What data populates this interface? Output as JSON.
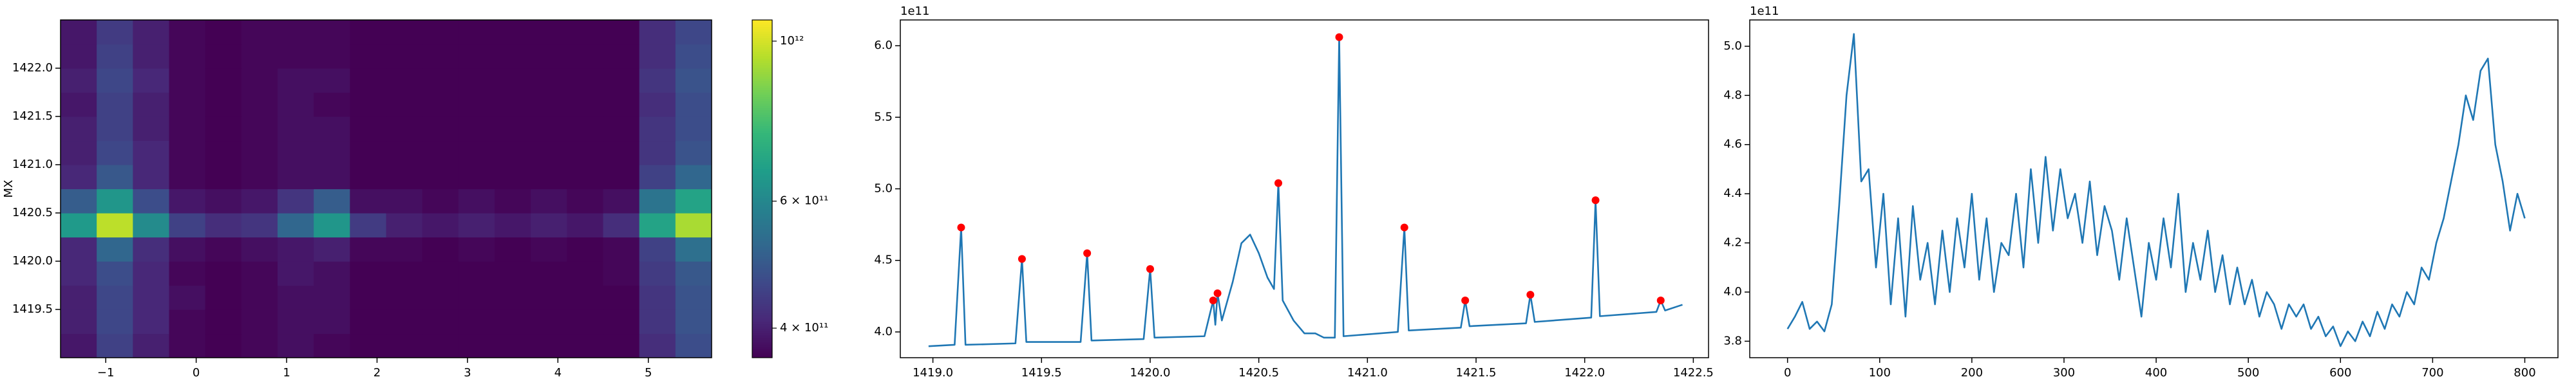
{
  "chart_data": [
    {
      "type": "heatmap",
      "ylabel": "MX",
      "x": [
        -1.3,
        -0.9,
        -0.5,
        -0.1,
        0.3,
        0.7,
        1.1,
        1.5,
        1.9,
        2.3,
        2.7,
        3.1,
        3.5,
        3.9,
        4.3,
        4.7,
        5.1,
        5.5
      ],
      "y": [
        1419.125,
        1419.375,
        1419.625,
        1419.875,
        1420.125,
        1420.375,
        1420.625,
        1420.875,
        1421.125,
        1421.375,
        1421.625,
        1421.875,
        1422.125,
        1422.375
      ],
      "values": [
        [
          390000000000.0,
          450000000000.0,
          400000000000.0,
          370000000000.0,
          360000000000.0,
          370000000000.0,
          380000000000.0,
          370000000000.0,
          360000000000.0,
          360000000000.0,
          350000000000.0,
          360000000000.0,
          350000000000.0,
          360000000000.0,
          350000000000.0,
          360000000000.0,
          420000000000.0,
          470000000000.0
        ],
        [
          400000000000.0,
          460000000000.0,
          410000000000.0,
          370000000000.0,
          360000000000.0,
          370000000000.0,
          380000000000.0,
          380000000000.0,
          360000000000.0,
          360000000000.0,
          350000000000.0,
          360000000000.0,
          350000000000.0,
          360000000000.0,
          350000000000.0,
          360000000000.0,
          430000000000.0,
          480000000000.0
        ],
        [
          400000000000.0,
          460000000000.0,
          410000000000.0,
          380000000000.0,
          360000000000.0,
          370000000000.0,
          380000000000.0,
          380000000000.0,
          360000000000.0,
          350000000000.0,
          350000000000.0,
          360000000000.0,
          350000000000.0,
          360000000000.0,
          350000000000.0,
          360000000000.0,
          430000000000.0,
          480000000000.0
        ],
        [
          410000000000.0,
          470000000000.0,
          410000000000.0,
          370000000000.0,
          360000000000.0,
          370000000000.0,
          390000000000.0,
          380000000000.0,
          360000000000.0,
          360000000000.0,
          350000000000.0,
          360000000000.0,
          350000000000.0,
          360000000000.0,
          350000000000.0,
          370000000000.0,
          440000000000.0,
          490000000000.0
        ],
        [
          410000000000.0,
          520000000000.0,
          420000000000.0,
          380000000000.0,
          370000000000.0,
          380000000000.0,
          390000000000.0,
          400000000000.0,
          370000000000.0,
          370000000000.0,
          360000000000.0,
          370000000000.0,
          360000000000.0,
          370000000000.0,
          360000000000.0,
          370000000000.0,
          450000000000.0,
          540000000000.0
        ],
        [
          650000000000.0,
          960000000000.0,
          610000000000.0,
          450000000000.0,
          420000000000.0,
          430000000000.0,
          520000000000.0,
          640000000000.0,
          440000000000.0,
          400000000000.0,
          390000000000.0,
          400000000000.0,
          390000000000.0,
          400000000000.0,
          390000000000.0,
          420000000000.0,
          680000000000.0,
          930000000000.0
        ],
        [
          500000000000.0,
          640000000000.0,
          470000000000.0,
          390000000000.0,
          380000000000.0,
          390000000000.0,
          430000000000.0,
          500000000000.0,
          380000000000.0,
          380000000000.0,
          370000000000.0,
          380000000000.0,
          370000000000.0,
          380000000000.0,
          370000000000.0,
          380000000000.0,
          550000000000.0,
          680000000000.0
        ],
        [
          410000000000.0,
          490000000000.0,
          410000000000.0,
          370000000000.0,
          360000000000.0,
          370000000000.0,
          380000000000.0,
          380000000000.0,
          360000000000.0,
          360000000000.0,
          350000000000.0,
          360000000000.0,
          350000000000.0,
          360000000000.0,
          350000000000.0,
          360000000000.0,
          450000000000.0,
          520000000000.0
        ],
        [
          400000000000.0,
          460000000000.0,
          410000000000.0,
          370000000000.0,
          360000000000.0,
          370000000000.0,
          380000000000.0,
          380000000000.0,
          360000000000.0,
          360000000000.0,
          350000000000.0,
          360000000000.0,
          350000000000.0,
          360000000000.0,
          350000000000.0,
          360000000000.0,
          430000000000.0,
          480000000000.0
        ],
        [
          400000000000.0,
          450000000000.0,
          400000000000.0,
          370000000000.0,
          360000000000.0,
          370000000000.0,
          380000000000.0,
          380000000000.0,
          360000000000.0,
          360000000000.0,
          350000000000.0,
          360000000000.0,
          350000000000.0,
          360000000000.0,
          350000000000.0,
          360000000000.0,
          430000000000.0,
          470000000000.0
        ],
        [
          390000000000.0,
          450000000000.0,
          400000000000.0,
          370000000000.0,
          360000000000.0,
          370000000000.0,
          380000000000.0,
          370000000000.0,
          360000000000.0,
          360000000000.0,
          350000000000.0,
          360000000000.0,
          350000000000.0,
          360000000000.0,
          350000000000.0,
          360000000000.0,
          420000000000.0,
          470000000000.0
        ],
        [
          400000000000.0,
          460000000000.0,
          410000000000.0,
          370000000000.0,
          360000000000.0,
          370000000000.0,
          380000000000.0,
          380000000000.0,
          360000000000.0,
          360000000000.0,
          350000000000.0,
          360000000000.0,
          350000000000.0,
          360000000000.0,
          350000000000.0,
          360000000000.0,
          430000000000.0,
          480000000000.0
        ],
        [
          390000000000.0,
          450000000000.0,
          400000000000.0,
          370000000000.0,
          360000000000.0,
          370000000000.0,
          370000000000.0,
          370000000000.0,
          360000000000.0,
          360000000000.0,
          350000000000.0,
          360000000000.0,
          350000000000.0,
          360000000000.0,
          350000000000.0,
          360000000000.0,
          420000000000.0,
          470000000000.0
        ],
        [
          390000000000.0,
          440000000000.0,
          400000000000.0,
          370000000000.0,
          360000000000.0,
          370000000000.0,
          370000000000.0,
          370000000000.0,
          360000000000.0,
          350000000000.0,
          350000000000.0,
          350000000000.0,
          350000000000.0,
          360000000000.0,
          350000000000.0,
          360000000000.0,
          420000000000.0,
          460000000000.0
        ]
      ],
      "xlim": [
        -1.5,
        5.7
      ],
      "ylim": [
        1419.0,
        1422.5
      ],
      "xticks": [
        {
          "value": -1,
          "label": "−1"
        },
        0,
        1,
        2,
        3,
        4,
        5
      ],
      "yticks": [
        1419.5,
        {
          "value": 1420,
          "label": "1420.0"
        },
        1420.5,
        {
          "value": 1421,
          "label": "1421.0"
        },
        1421.5,
        {
          "value": 1422,
          "label": "1422.0"
        }
      ],
      "colormap": [
        "#440154",
        "#482878",
        "#3e4989",
        "#31688e",
        "#26828e",
        "#1f9e89",
        "#35b779",
        "#6ece58",
        "#b5de2b",
        "#fde725"
      ],
      "colorbar": {
        "scale": "log",
        "lim": [
          364000000000.0,
          1070000000000.0
        ],
        "ticks": [
          {
            "value": 400000000000.0,
            "label": "4 × 10¹¹"
          },
          {
            "value": 600000000000.0,
            "label": "6 × 10¹¹"
          },
          {
            "value": 1000000000000.0,
            "label": "10¹²"
          }
        ]
      }
    },
    {
      "type": "line",
      "y_offset_label": "1e11",
      "xlim": [
        1418.85,
        1422.57
      ],
      "ylim": [
        3.82,
        6.18
      ],
      "xticks": [
        {
          "value": 1419,
          "label": "1419.0"
        },
        1419.5,
        {
          "value": 1420,
          "label": "1420.0"
        },
        1420.5,
        {
          "value": 1421,
          "label": "1421.0"
        },
        1421.5,
        {
          "value": 1422,
          "label": "1422.0"
        },
        1422.5
      ],
      "yticks": [
        {
          "value": 4,
          "label": "4.0"
        },
        4.5,
        {
          "value": 5,
          "label": "5.0"
        },
        5.5,
        {
          "value": 6,
          "label": "6.0"
        }
      ],
      "series": [
        {
          "type": "line",
          "color": "#1f77b4",
          "x": [
            1418.98,
            1419.1,
            1419.13,
            1419.15,
            1419.38,
            1419.41,
            1419.43,
            1419.68,
            1419.71,
            1419.73,
            1419.97,
            1420.0,
            1420.02,
            1420.25,
            1420.29,
            1420.3,
            1420.31,
            1420.33,
            1420.38,
            1420.42,
            1420.46,
            1420.5,
            1420.54,
            1420.57,
            1420.59,
            1420.61,
            1420.66,
            1420.71,
            1420.76,
            1420.8,
            1420.85,
            1420.87,
            1420.89,
            1421.14,
            1421.17,
            1421.19,
            1421.43,
            1421.45,
            1421.47,
            1421.73,
            1421.75,
            1421.77,
            1422.03,
            1422.05,
            1422.07,
            1422.33,
            1422.35,
            1422.37,
            1422.45
          ],
          "values": [
            3.9,
            3.91,
            4.73,
            3.91,
            3.92,
            4.51,
            3.93,
            3.93,
            4.55,
            3.94,
            3.95,
            4.44,
            3.96,
            3.97,
            4.22,
            4.05,
            4.27,
            4.08,
            4.35,
            4.62,
            4.68,
            4.55,
            4.38,
            4.3,
            5.04,
            4.22,
            4.08,
            3.99,
            3.99,
            3.96,
            3.96,
            6.06,
            3.97,
            4.0,
            4.73,
            4.01,
            4.03,
            4.22,
            4.04,
            4.06,
            4.26,
            4.07,
            4.1,
            4.92,
            4.11,
            4.14,
            4.22,
            4.15,
            4.19
          ]
        },
        {
          "type": "scatter",
          "color": "#ff0000",
          "x": [
            1419.13,
            1419.41,
            1419.71,
            1420.0,
            1420.29,
            1420.31,
            1420.59,
            1420.87,
            1421.17,
            1421.45,
            1421.75,
            1422.05,
            1422.35
          ],
          "values": [
            4.73,
            4.51,
            4.55,
            4.44,
            4.22,
            4.27,
            5.04,
            6.06,
            4.73,
            4.22,
            4.26,
            4.92,
            4.22
          ]
        }
      ]
    },
    {
      "type": "line",
      "y_offset_label": "1e11",
      "xlim": [
        -41,
        836
      ],
      "ylim": [
        3.733,
        5.107
      ],
      "xticks": [
        0,
        100,
        200,
        300,
        400,
        500,
        600,
        700,
        800
      ],
      "yticks": [
        3.8,
        {
          "value": 4,
          "label": "4.0"
        },
        4.2,
        4.4,
        4.6,
        4.8,
        {
          "value": 5,
          "label": "5.0"
        }
      ],
      "series": [
        {
          "type": "line",
          "color": "#1f77b4",
          "x": [
            0,
            8,
            16,
            24,
            32,
            40,
            48,
            56,
            64,
            72,
            80,
            88,
            96,
            104,
            112,
            120,
            128,
            136,
            144,
            152,
            160,
            168,
            176,
            184,
            192,
            200,
            208,
            216,
            224,
            232,
            240,
            248,
            256,
            264,
            272,
            280,
            288,
            296,
            304,
            312,
            320,
            328,
            336,
            344,
            352,
            360,
            368,
            376,
            384,
            392,
            400,
            408,
            416,
            424,
            432,
            440,
            448,
            456,
            464,
            472,
            480,
            488,
            496,
            504,
            512,
            520,
            528,
            536,
            544,
            552,
            560,
            568,
            576,
            584,
            592,
            600,
            608,
            616,
            624,
            632,
            640,
            648,
            656,
            664,
            672,
            680,
            688,
            696,
            704,
            712,
            720,
            728,
            736,
            744,
            752,
            760,
            768,
            776,
            784,
            792,
            800
          ],
          "values": [
            3.85,
            3.9,
            3.96,
            3.85,
            3.88,
            3.84,
            3.95,
            4.35,
            4.8,
            5.05,
            4.45,
            4.5,
            4.1,
            4.4,
            3.95,
            4.3,
            3.9,
            4.35,
            4.05,
            4.2,
            3.95,
            4.25,
            4.0,
            4.3,
            4.1,
            4.4,
            4.05,
            4.3,
            4.0,
            4.2,
            4.15,
            4.4,
            4.1,
            4.5,
            4.2,
            4.55,
            4.25,
            4.5,
            4.3,
            4.4,
            4.2,
            4.45,
            4.15,
            4.35,
            4.25,
            4.05,
            4.3,
            4.1,
            3.9,
            4.2,
            4.05,
            4.3,
            4.1,
            4.4,
            4.0,
            4.2,
            4.05,
            4.25,
            4.0,
            4.15,
            3.95,
            4.1,
            3.95,
            4.05,
            3.9,
            4.0,
            3.95,
            3.85,
            3.95,
            3.9,
            3.95,
            3.85,
            3.9,
            3.82,
            3.86,
            3.78,
            3.84,
            3.8,
            3.88,
            3.82,
            3.92,
            3.85,
            3.95,
            3.9,
            4.0,
            3.95,
            4.1,
            4.05,
            4.2,
            4.3,
            4.45,
            4.6,
            4.8,
            4.7,
            4.9,
            4.95,
            4.6,
            4.45,
            4.25,
            4.4,
            4.3
          ]
        }
      ]
    }
  ]
}
